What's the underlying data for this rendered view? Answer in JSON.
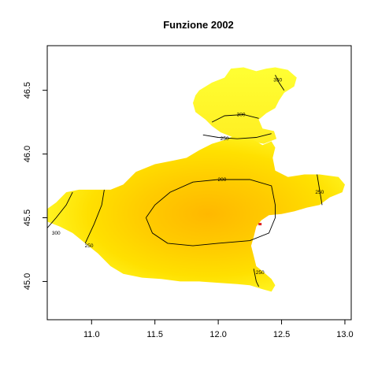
{
  "chart_data": {
    "type": "heatmap",
    "title": "Funzione 2002",
    "xlabel": "",
    "ylabel": "",
    "xlim": [
      10.65,
      13.05
    ],
    "ylim": [
      44.7,
      46.85
    ],
    "x_ticks": [
      "11.0",
      "11.5",
      "12.0",
      "12.5",
      "13.0"
    ],
    "y_ticks": [
      "45.0",
      "45.5",
      "46.0",
      "46.5"
    ],
    "colors": {
      "low": "#FFC400",
      "mid": "#FFE000",
      "high": "#FFFF33",
      "contour": "#000000",
      "marker": "#E02020"
    },
    "region_outline": [
      [
        10.65,
        45.57
      ],
      [
        10.72,
        45.62
      ],
      [
        10.8,
        45.7
      ],
      [
        10.9,
        45.72
      ],
      [
        11.05,
        45.72
      ],
      [
        11.15,
        45.72
      ],
      [
        11.25,
        45.76
      ],
      [
        11.35,
        45.86
      ],
      [
        11.5,
        45.92
      ],
      [
        11.65,
        45.95
      ],
      [
        11.75,
        45.97
      ],
      [
        11.85,
        46.03
      ],
      [
        11.95,
        46.08
      ],
      [
        12.05,
        46.11
      ],
      [
        12.12,
        46.14
      ],
      [
        12.2,
        46.13
      ],
      [
        12.28,
        46.11
      ],
      [
        12.35,
        46.07
      ],
      [
        12.42,
        46.1
      ],
      [
        12.45,
        46.05
      ],
      [
        12.43,
        45.97
      ],
      [
        12.45,
        45.87
      ],
      [
        12.55,
        45.82
      ],
      [
        12.68,
        45.84
      ],
      [
        12.8,
        45.84
      ],
      [
        12.95,
        45.82
      ],
      [
        13.0,
        45.76
      ],
      [
        12.98,
        45.7
      ],
      [
        12.88,
        45.66
      ],
      [
        12.8,
        45.6
      ],
      [
        12.7,
        45.58
      ],
      [
        12.6,
        45.55
      ],
      [
        12.5,
        45.53
      ],
      [
        12.4,
        45.52
      ],
      [
        12.34,
        45.48
      ],
      [
        12.3,
        45.43
      ],
      [
        12.28,
        45.35
      ],
      [
        12.26,
        45.28
      ],
      [
        12.28,
        45.2
      ],
      [
        12.3,
        45.12
      ],
      [
        12.35,
        45.08
      ],
      [
        12.42,
        45.02
      ],
      [
        12.45,
        44.97
      ],
      [
        12.42,
        44.92
      ],
      [
        12.35,
        44.94
      ],
      [
        12.25,
        44.97
      ],
      [
        12.15,
        44.98
      ],
      [
        12.0,
        44.99
      ],
      [
        11.85,
        45.0
      ],
      [
        11.7,
        45.0
      ],
      [
        11.55,
        45.02
      ],
      [
        11.4,
        45.03
      ],
      [
        11.25,
        45.06
      ],
      [
        11.15,
        45.12
      ],
      [
        11.05,
        45.22
      ],
      [
        10.95,
        45.3
      ],
      [
        10.85,
        45.38
      ],
      [
        10.75,
        45.43
      ],
      [
        10.65,
        45.47
      ]
    ],
    "north_lobe": [
      [
        11.85,
        46.5
      ],
      [
        11.95,
        46.56
      ],
      [
        12.05,
        46.6
      ],
      [
        12.1,
        46.67
      ],
      [
        12.2,
        46.68
      ],
      [
        12.3,
        46.65
      ],
      [
        12.38,
        46.67
      ],
      [
        12.45,
        46.68
      ],
      [
        12.55,
        46.66
      ],
      [
        12.62,
        46.6
      ],
      [
        12.6,
        46.53
      ],
      [
        12.52,
        46.48
      ],
      [
        12.48,
        46.42
      ],
      [
        12.45,
        46.36
      ],
      [
        12.38,
        46.32
      ],
      [
        12.32,
        46.27
      ],
      [
        12.35,
        46.2
      ],
      [
        12.44,
        46.18
      ],
      [
        12.46,
        46.12
      ],
      [
        12.36,
        46.08
      ],
      [
        12.25,
        46.1
      ],
      [
        12.12,
        46.13
      ],
      [
        12.02,
        46.17
      ],
      [
        11.95,
        46.22
      ],
      [
        11.9,
        46.27
      ],
      [
        11.82,
        46.33
      ],
      [
        11.8,
        46.4
      ],
      [
        11.82,
        46.46
      ]
    ],
    "contours": [
      {
        "level": "200",
        "points": [
          [
            11.43,
            45.5
          ],
          [
            11.5,
            45.6
          ],
          [
            11.62,
            45.7
          ],
          [
            11.8,
            45.78
          ],
          [
            12.0,
            45.8
          ],
          [
            12.25,
            45.8
          ],
          [
            12.42,
            45.75
          ],
          [
            12.45,
            45.6
          ],
          [
            12.45,
            45.5
          ],
          [
            12.4,
            45.38
          ],
          [
            12.25,
            45.32
          ],
          [
            12.0,
            45.3
          ],
          [
            11.8,
            45.28
          ],
          [
            11.6,
            45.3
          ],
          [
            11.48,
            45.38
          ],
          [
            11.43,
            45.5
          ]
        ],
        "label_at": [
          12.03,
          45.8
        ]
      },
      {
        "level": "250",
        "points": [
          [
            11.88,
            46.15
          ],
          [
            12.0,
            46.13
          ],
          [
            12.15,
            46.12
          ],
          [
            12.3,
            46.13
          ],
          [
            12.42,
            46.16
          ]
        ],
        "label_at": [
          12.05,
          46.12
        ]
      },
      {
        "level": "300",
        "points": [
          [
            11.95,
            46.25
          ],
          [
            12.05,
            46.3
          ],
          [
            12.2,
            46.31
          ],
          [
            12.32,
            46.28
          ]
        ],
        "label_at": [
          12.18,
          46.31
        ]
      },
      {
        "level": "350",
        "points": [
          [
            12.45,
            46.62
          ],
          [
            12.48,
            46.56
          ],
          [
            12.52,
            46.5
          ]
        ],
        "label_at": [
          12.47,
          46.58
        ]
      },
      {
        "level": "250",
        "points": [
          [
            11.1,
            45.72
          ],
          [
            11.08,
            45.6
          ],
          [
            11.02,
            45.45
          ],
          [
            10.95,
            45.3
          ]
        ],
        "label_at": [
          10.98,
          45.28
        ]
      },
      {
        "level": "300",
        "points": [
          [
            10.85,
            45.7
          ],
          [
            10.8,
            45.6
          ],
          [
            10.72,
            45.5
          ],
          [
            10.65,
            45.42
          ]
        ],
        "label_at": [
          10.72,
          45.38
        ]
      },
      {
        "level": "250",
        "points": [
          [
            12.78,
            45.84
          ],
          [
            12.8,
            45.72
          ],
          [
            12.82,
            45.6
          ]
        ],
        "label_at": [
          12.8,
          45.7
        ]
      },
      {
        "level": "250",
        "points": [
          [
            12.28,
            45.1
          ],
          [
            12.3,
            45.0
          ],
          [
            12.32,
            44.96
          ]
        ],
        "label_at": [
          12.33,
          45.07
        ]
      }
    ],
    "markers": [
      [
        12.33,
        45.45
      ]
    ]
  }
}
